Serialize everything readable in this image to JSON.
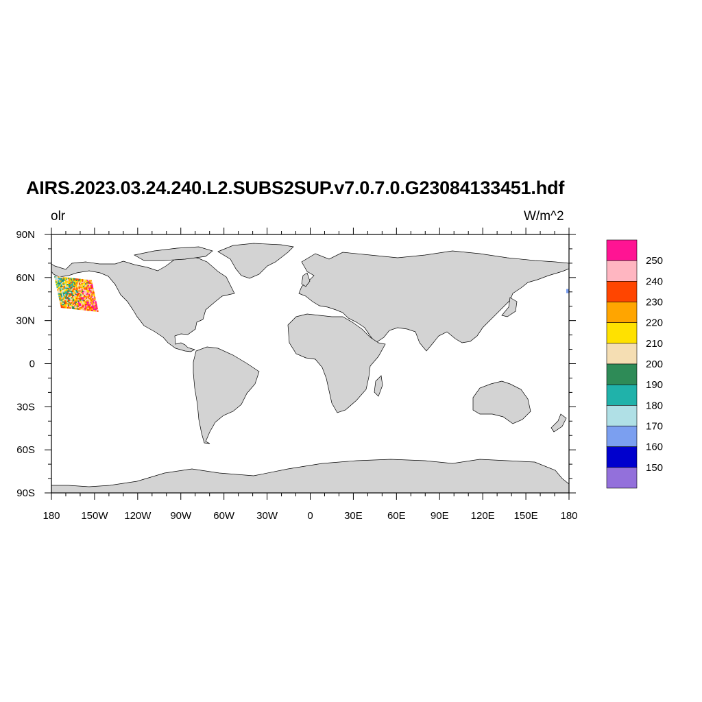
{
  "title": "AIRS.2023.03.24.240.L2.SUBS2SUP.v7.0.7.0.G23084133451.hdf",
  "variable": "olr",
  "units": "W/m^2",
  "colors": {
    "land": "#d3d3d3",
    "ocean": "#ffffff",
    "coast": "#000000"
  },
  "map": {
    "projection": "cylindrical equidistant",
    "lon_range": [
      -180,
      180
    ],
    "lat_range": [
      -90,
      90
    ],
    "lon_ticks": [
      {
        "value": -180,
        "label": "180"
      },
      {
        "value": -150,
        "label": "150W"
      },
      {
        "value": -120,
        "label": "120W"
      },
      {
        "value": -90,
        "label": "90W"
      },
      {
        "value": -60,
        "label": "60W"
      },
      {
        "value": -30,
        "label": "30W"
      },
      {
        "value": 0,
        "label": "0"
      },
      {
        "value": 30,
        "label": "30E"
      },
      {
        "value": 60,
        "label": "60E"
      },
      {
        "value": 90,
        "label": "90E"
      },
      {
        "value": 120,
        "label": "120E"
      },
      {
        "value": 150,
        "label": "150E"
      },
      {
        "value": 180,
        "label": "180"
      }
    ],
    "lat_ticks": [
      {
        "value": 90,
        "label": "90N"
      },
      {
        "value": 60,
        "label": "60N"
      },
      {
        "value": 30,
        "label": "30N"
      },
      {
        "value": 0,
        "label": "0"
      },
      {
        "value": -30,
        "label": "30S"
      },
      {
        "value": -60,
        "label": "60S"
      },
      {
        "value": -90,
        "label": "90S"
      }
    ],
    "granule": {
      "lon_range": [
        -178,
        -152
      ],
      "lat_range": [
        39,
        61
      ]
    }
  },
  "colorbar": {
    "levels": [
      "150",
      "160",
      "170",
      "180",
      "190",
      "200",
      "210",
      "220",
      "230",
      "240",
      "250"
    ],
    "colors": [
      "#9370db",
      "#0000cd",
      "#7b9ff0",
      "#b0e0e6",
      "#20b2aa",
      "#2e8b57",
      "#f5deb3",
      "#ffe100",
      "#ffa500",
      "#ff4500",
      "#ffb6c1",
      "#ff1493"
    ]
  }
}
